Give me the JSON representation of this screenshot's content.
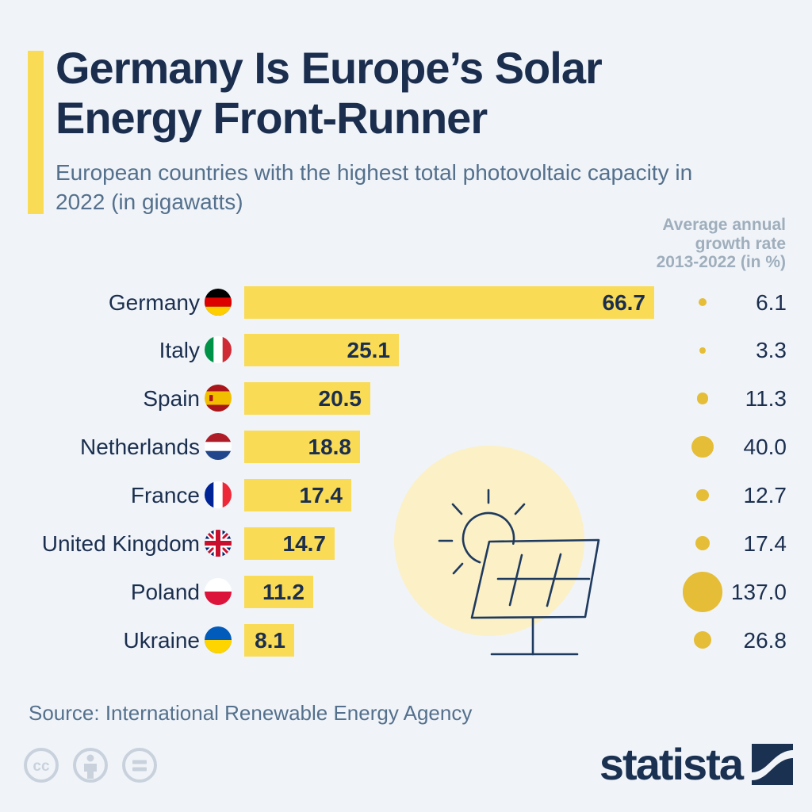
{
  "header": {
    "title": "Germany Is Europe’s Solar Energy Front-Runner",
    "subtitle": "European countries with the highest total photovoltaic capacity in 2022 (in gigawatts)"
  },
  "growth_header": "Average annual\ngrowth rate\n2013-2022 (in %)",
  "chart_data": {
    "type": "bar",
    "title": "European countries with the highest total photovoltaic capacity in 2022",
    "unit_bars": "gigawatts",
    "unit_dots": "percent",
    "orientation": "horizontal",
    "value_label_position": "inside-end",
    "xlim": [
      0,
      66.7
    ],
    "categories": [
      "Germany",
      "Italy",
      "Spain",
      "Netherlands",
      "France",
      "United Kingdom",
      "Poland",
      "Ukraine"
    ],
    "flags": [
      "de",
      "it",
      "es",
      "nl",
      "fr",
      "gb",
      "pl",
      "ua"
    ],
    "series": [
      {
        "name": "Total photovoltaic capacity 2022 (in gigawatts)",
        "values": [
          66.7,
          25.1,
          20.5,
          18.8,
          17.4,
          14.7,
          11.2,
          8.1
        ]
      },
      {
        "name": "Average annual growth rate 2013-2022 (in %)",
        "values": [
          6.1,
          3.3,
          11.3,
          40.0,
          12.7,
          17.4,
          137.0,
          26.8
        ]
      }
    ]
  },
  "source": "Source: International Renewable Energy Agency",
  "branding": {
    "wordmark": "statista"
  },
  "license_icons": [
    "cc-icon",
    "by-person-icon",
    "nd-equals-icon"
  ],
  "icons": {
    "illustration": "sun-and-solar-panel"
  },
  "colors": {
    "background": "#F0F4F9",
    "bar_yellow": "#F9DB56",
    "dot_gold": "#E5BD37",
    "pale_circle": "#FBF0C6",
    "title_navy": "#1B2E4E",
    "subtitle_slate": "#54708C",
    "growth_header_gray": "#9FAEBC",
    "license_gray": "#C9D2DC",
    "brand_navy": "#1A3152"
  }
}
